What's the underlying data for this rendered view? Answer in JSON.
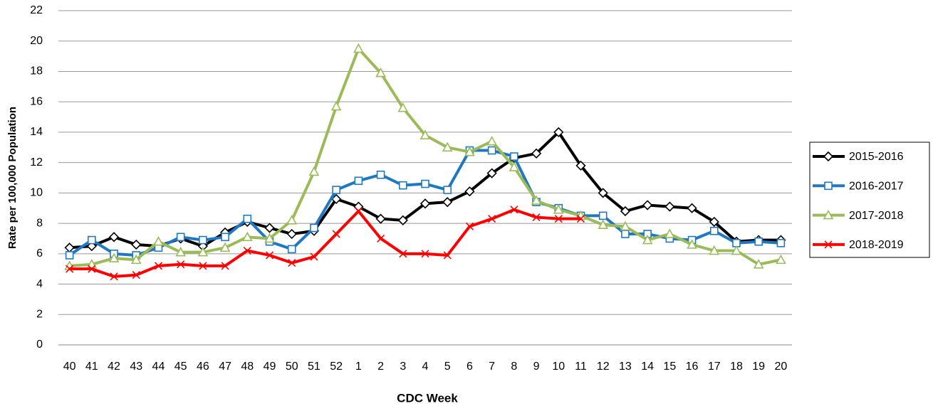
{
  "chart_data": {
    "type": "line",
    "x_label": "CDC Week",
    "y_label": "Rate per 100,000 Population",
    "categories": [
      "40",
      "41",
      "42",
      "43",
      "44",
      "45",
      "46",
      "47",
      "48",
      "49",
      "50",
      "51",
      "52",
      "1",
      "2",
      "3",
      "4",
      "5",
      "6",
      "7",
      "8",
      "9",
      "10",
      "11",
      "12",
      "13",
      "14",
      "15",
      "16",
      "17",
      "18",
      "19",
      "20"
    ],
    "series": [
      {
        "name": "2015-2016",
        "color": "#000000",
        "marker": "diamond",
        "values": [
          6.4,
          6.5,
          7.1,
          6.6,
          6.5,
          7.0,
          6.5,
          7.4,
          8.1,
          7.7,
          7.3,
          7.5,
          9.6,
          9.1,
          8.3,
          8.2,
          9.3,
          9.4,
          10.1,
          11.3,
          12.3,
          12.6,
          14.0,
          11.8,
          10.0,
          8.8,
          9.2,
          9.1,
          9.0,
          8.1,
          6.8,
          6.9,
          6.9
        ]
      },
      {
        "name": "2016-2017",
        "color": "#1f78c1",
        "marker": "square",
        "values": [
          5.9,
          6.9,
          6.0,
          5.9,
          6.4,
          7.1,
          6.9,
          7.1,
          8.3,
          6.8,
          6.3,
          7.7,
          10.2,
          10.8,
          11.2,
          10.5,
          10.6,
          10.2,
          12.8,
          12.8,
          12.4,
          9.4,
          9.0,
          8.5,
          8.5,
          7.3,
          7.3,
          7.0,
          6.9,
          7.5,
          6.7,
          6.8,
          6.7
        ]
      },
      {
        "name": "2017-2018",
        "color": "#9bbb59",
        "marker": "triangle",
        "values": [
          5.2,
          5.3,
          5.7,
          5.6,
          6.8,
          6.1,
          6.1,
          6.4,
          7.1,
          7.0,
          8.2,
          11.4,
          15.7,
          19.5,
          17.9,
          15.6,
          13.8,
          13.0,
          12.7,
          13.4,
          11.7,
          9.5,
          8.9,
          8.5,
          7.9,
          7.8,
          6.9,
          7.3,
          6.6,
          6.2,
          6.2,
          5.3,
          5.6
        ]
      },
      {
        "name": "2018-2019",
        "color": "#ff0000",
        "marker": "x",
        "values": [
          5.0,
          5.0,
          4.5,
          4.6,
          5.2,
          5.3,
          5.2,
          5.2,
          6.2,
          5.9,
          5.4,
          5.8,
          7.3,
          8.8,
          7.0,
          6.0,
          6.0,
          5.9,
          7.8,
          8.3,
          8.9,
          8.4,
          8.3,
          8.3,
          null,
          null,
          null,
          null,
          null,
          null,
          null,
          null,
          null
        ]
      }
    ],
    "ylim": [
      0,
      22
    ],
    "yticks": [
      0,
      2,
      4,
      6,
      8,
      10,
      12,
      14,
      16,
      18,
      20,
      22
    ],
    "grid": true,
    "legend": "right"
  }
}
